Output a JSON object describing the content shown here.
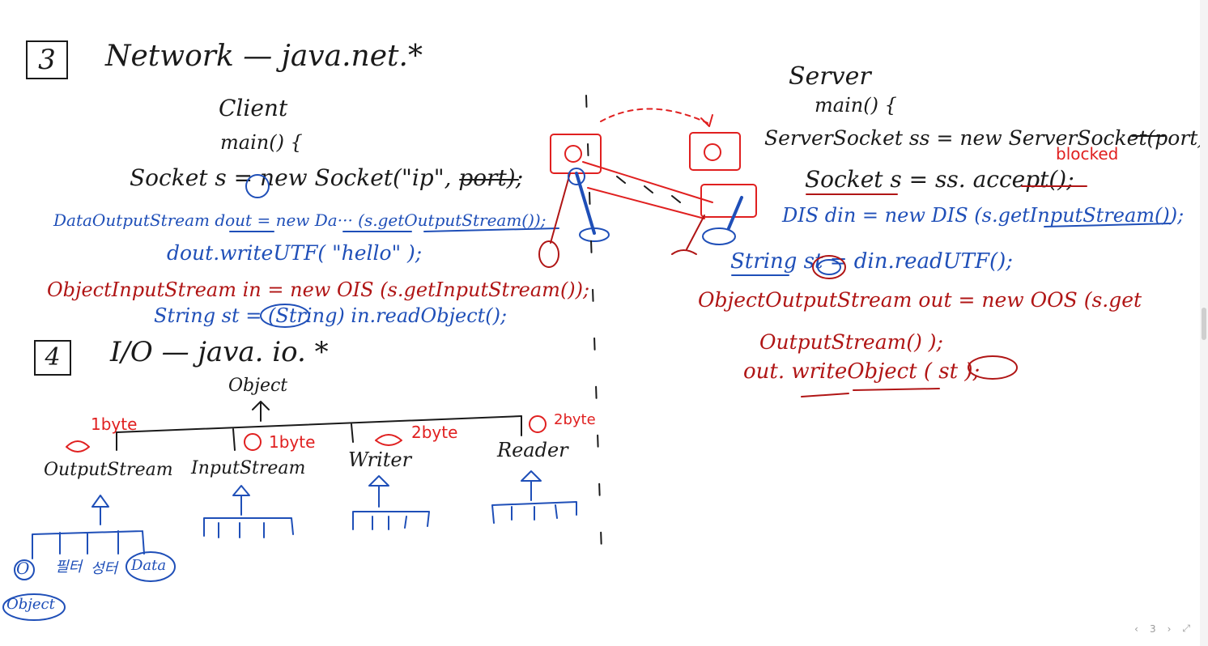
{
  "section3": {
    "number": "3",
    "title": "Network — java.net.*"
  },
  "client": {
    "label": "Client",
    "main": "main() {",
    "socket_line": "Socket  s  = new  Socket(\"ip\", port);",
    "dos_line": "DataOutputStream  dout = new  Da···  (s.getOutputStream());",
    "write_line": "dout.writeUTF( \"hello\" );",
    "ois_line": "ObjectInputStream   in = new  OIS (s.getInputStream());",
    "read_line": "String  st = (String) in.readObject();"
  },
  "server": {
    "label": "Server",
    "main": "main() {",
    "serversocket_line": "ServerSocket  ss = new  ServerSocket(port);",
    "blocked": "blocked",
    "accept_line": "Socket  s = ss. accept();",
    "dis_line": "DIS   din = new  DIS (s.getInputStream());",
    "readutf_line": "String  st = din.readUTF();",
    "oos_line1": "ObjectOutputStream   out = new  OOS (s.get",
    "oos_line2": "OutputStream() );",
    "writeobj_line": "out. writeObject ( st );"
  },
  "section4": {
    "number": "4",
    "title": "I/O — java. io. *"
  },
  "hierarchy": {
    "root": "Object",
    "classes": [
      {
        "name": "OutputStream",
        "note": "1byte"
      },
      {
        "name": "InputStream",
        "note": "1byte"
      },
      {
        "name": "Writer",
        "note": "2byte"
      },
      {
        "name": "Reader",
        "note": "2byte"
      }
    ],
    "sub_labels": [
      "O",
      "필터",
      "성터",
      "Data",
      "Object"
    ]
  },
  "pager": {
    "prev_far": "‹",
    "page": "3",
    "next": "›",
    "expand": "⤢"
  },
  "colors": {
    "ink": "#1a1a1a",
    "blue": "#1f4fb8",
    "red": "#b01515",
    "bright_red": "#e02020"
  }
}
